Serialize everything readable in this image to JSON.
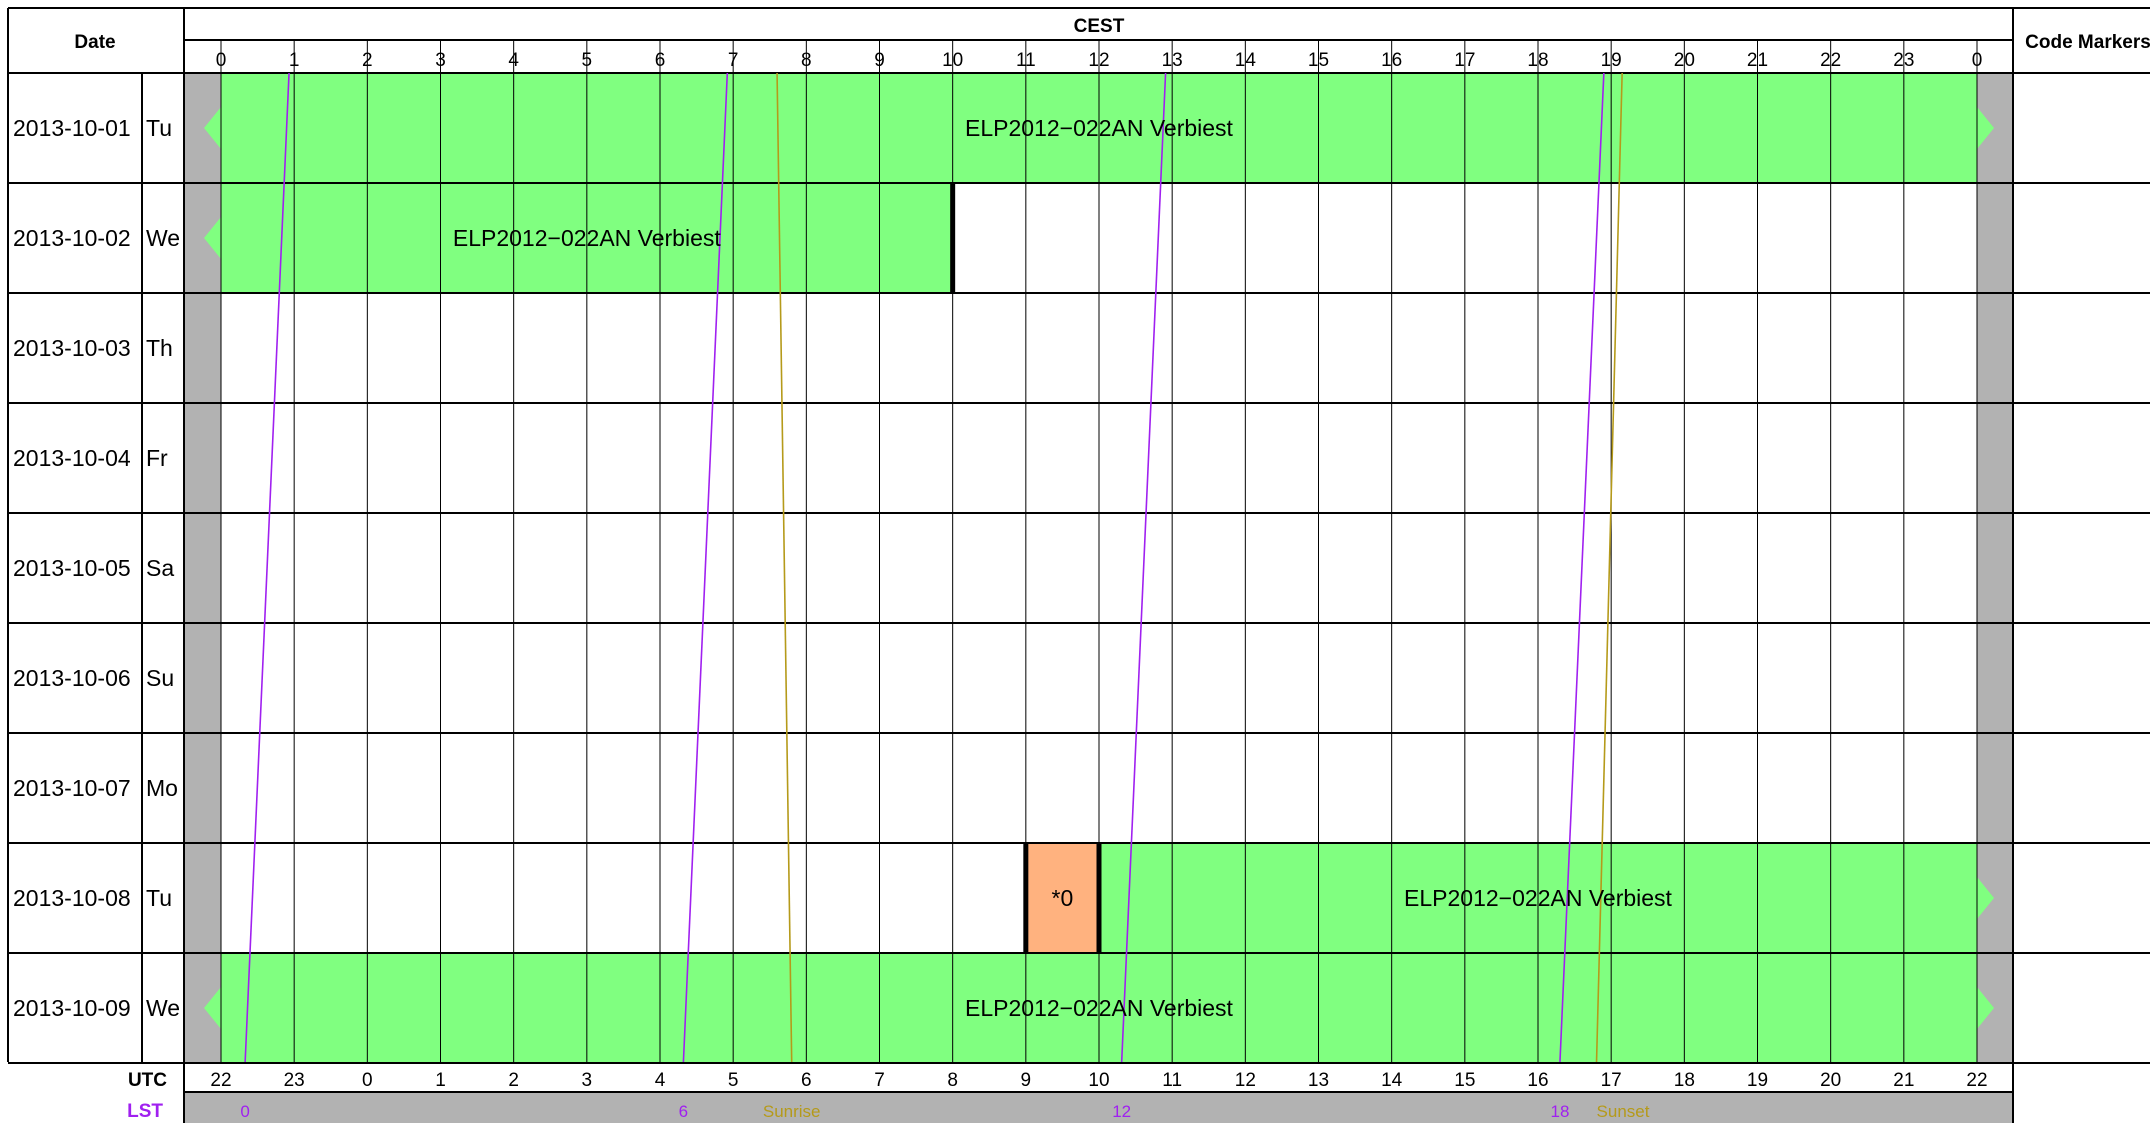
{
  "chart_data": {
    "type": "schedule",
    "header": {
      "date_label": "Date",
      "timezone_label": "CEST",
      "code_markers_label": "Code Markers",
      "utc_label": "UTC",
      "lst_label": "LST"
    },
    "cest_ticks": [
      "0",
      "1",
      "2",
      "3",
      "4",
      "5",
      "6",
      "7",
      "8",
      "9",
      "10",
      "11",
      "12",
      "13",
      "14",
      "15",
      "16",
      "17",
      "18",
      "19",
      "20",
      "21",
      "22",
      "23",
      "0"
    ],
    "utc_ticks": [
      "22",
      "23",
      "0",
      "1",
      "2",
      "3",
      "4",
      "5",
      "6",
      "7",
      "8",
      "9",
      "10",
      "11",
      "12",
      "13",
      "14",
      "15",
      "16",
      "17",
      "18",
      "19",
      "20",
      "21",
      "22"
    ],
    "x_range_hours": [
      0,
      24
    ],
    "rows": [
      {
        "date": "2013-10-01",
        "day": "Tu"
      },
      {
        "date": "2013-10-02",
        "day": "We"
      },
      {
        "date": "2013-10-03",
        "day": "Th"
      },
      {
        "date": "2013-10-04",
        "day": "Fr"
      },
      {
        "date": "2013-10-05",
        "day": "Sa"
      },
      {
        "date": "2013-10-06",
        "day": "Su"
      },
      {
        "date": "2013-10-07",
        "day": "Mo"
      },
      {
        "date": "2013-10-08",
        "day": "Tu"
      },
      {
        "date": "2013-10-09",
        "day": "We"
      }
    ],
    "bookings": [
      {
        "row": 0,
        "start": 0,
        "end": 24,
        "label": "ELP2012−022AN Verbiest",
        "color": "#80ff80",
        "continues_before": true,
        "continues_after": true
      },
      {
        "row": 1,
        "start": 0,
        "end": 10,
        "label": "ELP2012−022AN Verbiest",
        "color": "#80ff80",
        "continues_before": true,
        "continues_after": false
      },
      {
        "row": 7,
        "start": 11,
        "end": 12,
        "label": "*0",
        "color": "#ffb27f",
        "continues_before": false,
        "continues_after": false
      },
      {
        "row": 7,
        "start": 12,
        "end": 24,
        "label": "ELP2012−022AN Verbiest",
        "color": "#80ff80",
        "continues_before": false,
        "continues_after": true
      },
      {
        "row": 8,
        "start": 0,
        "end": 24,
        "label": "ELP2012−022AN Verbiest",
        "color": "#80ff80",
        "continues_before": true,
        "continues_after": true
      }
    ],
    "lst_lines": [
      {
        "label": "0",
        "cest_first_day": 0.93,
        "cest_last_day": 0.33
      },
      {
        "label": "6",
        "cest_first_day": 6.92,
        "cest_last_day": 6.32
      },
      {
        "label": "12",
        "cest_first_day": 12.91,
        "cest_last_day": 12.31
      },
      {
        "label": "18",
        "cest_first_day": 18.9,
        "cest_last_day": 18.3
      }
    ],
    "sunrise": {
      "label": "Sunrise",
      "cest_first_day": 7.6,
      "cest_last_day": 7.8
    },
    "sunset": {
      "label": "Sunset",
      "cest_first_day": 19.15,
      "cest_last_day": 18.8
    },
    "colors": {
      "grid": "#000000",
      "booking_green": "#80ff80",
      "booking_orange": "#ffb27f",
      "margin_gray": "#b2b2b2",
      "lst": "#a020f0",
      "sun": "#b59a1a"
    }
  }
}
